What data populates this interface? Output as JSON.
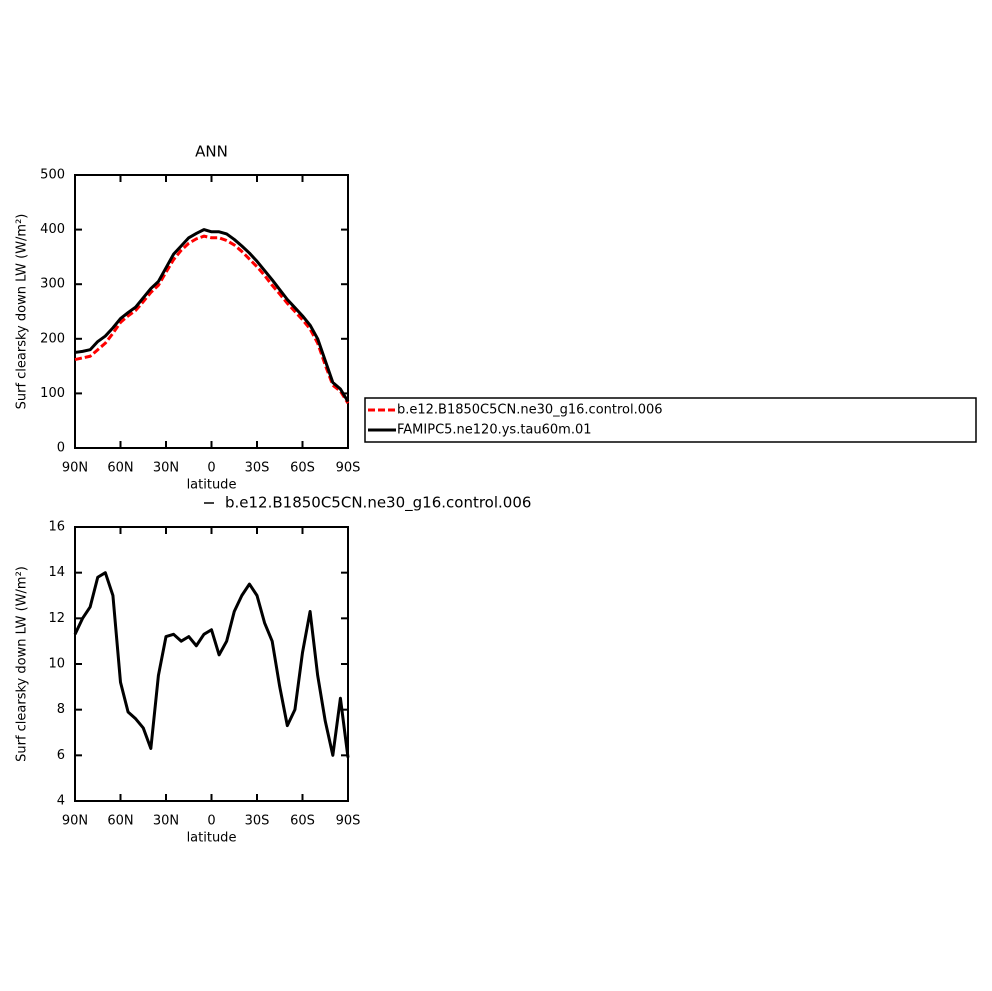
{
  "chart_data": [
    {
      "type": "line",
      "title": "ANN",
      "xlabel": "latitude",
      "ylabel": "Surf clearsky down LW (W/m²)",
      "x": [
        90,
        85,
        80,
        75,
        70,
        65,
        60,
        55,
        50,
        45,
        40,
        35,
        30,
        25,
        20,
        15,
        10,
        5,
        0,
        -5,
        -10,
        -15,
        -20,
        -25,
        -30,
        -35,
        -40,
        -45,
        -50,
        -55,
        -60,
        -65,
        -70,
        -75,
        -80,
        -85,
        -90
      ],
      "series": [
        {
          "name": "b.e12.B1850C5CN.ne30_g16.control.006",
          "color": "#ff0000",
          "line_style": "dashed",
          "values": [
            162,
            165,
            168,
            180,
            192,
            210,
            230,
            242,
            252,
            268,
            285,
            298,
            322,
            345,
            362,
            375,
            383,
            388,
            385,
            385,
            380,
            372,
            360,
            346,
            332,
            316,
            298,
            282,
            265,
            250,
            235,
            218,
            192,
            152,
            115,
            104,
            82
          ]
        },
        {
          "name": "FAMIPC5.ne120.ys.tau60m.01",
          "color": "#000000",
          "line_style": "solid",
          "values": [
            175,
            177,
            180,
            195,
            205,
            220,
            237,
            248,
            258,
            275,
            292,
            305,
            330,
            355,
            370,
            385,
            393,
            400,
            396,
            396,
            392,
            382,
            370,
            357,
            342,
            325,
            308,
            290,
            272,
            257,
            242,
            225,
            200,
            160,
            120,
            108,
            85
          ]
        }
      ],
      "xlim": [
        90,
        -90
      ],
      "xticks": [
        {
          "value": 90,
          "label": "90N"
        },
        {
          "value": 60,
          "label": "60N"
        },
        {
          "value": 30,
          "label": "30N"
        },
        0,
        {
          "value": -30,
          "label": "30S"
        },
        {
          "value": -60,
          "label": "60S"
        },
        {
          "value": -90,
          "label": "90S"
        }
      ],
      "ylim": [
        0,
        500
      ],
      "yticks": [
        0,
        100,
        200,
        300,
        400,
        500
      ],
      "legend": "right"
    },
    {
      "type": "line",
      "title": "b.e12.B1850C5CN.ne30_g16.control.006",
      "xlabel": "latitude",
      "ylabel": "Surf clearsky down LW (W/m²)",
      "x": [
        90,
        85,
        80,
        75,
        70,
        65,
        60,
        55,
        50,
        45,
        40,
        35,
        30,
        25,
        20,
        15,
        10,
        5,
        0,
        -5,
        -10,
        -15,
        -20,
        -25,
        -30,
        -35,
        -40,
        -45,
        -50,
        -55,
        -60,
        -65,
        -70,
        -75,
        -80,
        -85,
        -90
      ],
      "values": [
        11.3,
        12.0,
        12.5,
        13.8,
        14.0,
        13.0,
        9.2,
        7.9,
        7.6,
        7.2,
        6.3,
        9.5,
        11.2,
        11.3,
        11.0,
        11.2,
        10.8,
        11.3,
        11.5,
        10.4,
        11.0,
        12.3,
        13.0,
        13.5,
        13.0,
        11.8,
        11.0,
        9.0,
        7.3,
        8.0,
        10.5,
        12.3,
        9.5,
        7.5,
        6.0,
        8.5,
        5.9
      ],
      "color": "#000000",
      "xlim": [
        90,
        -90
      ],
      "xticks": [
        {
          "value": 90,
          "label": "90N"
        },
        {
          "value": 60,
          "label": "60N"
        },
        {
          "value": 30,
          "label": "30N"
        },
        0,
        {
          "value": -30,
          "label": "30S"
        },
        {
          "value": -60,
          "label": "60S"
        },
        {
          "value": -90,
          "label": "90S"
        }
      ],
      "ylim": [
        4,
        16
      ],
      "yticks": [
        4,
        6,
        8,
        10,
        12,
        14,
        16
      ]
    }
  ]
}
